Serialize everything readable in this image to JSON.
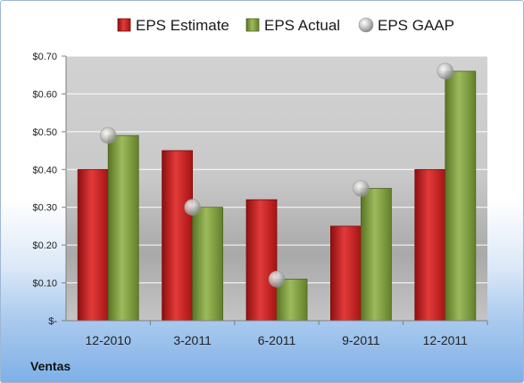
{
  "company": "Ventas",
  "chart_data": {
    "type": "bar",
    "categories": [
      "12-2010",
      "3-2011",
      "6-2011",
      "9-2011",
      "12-2011"
    ],
    "series": [
      {
        "name": "EPS Estimate",
        "kind": "bar",
        "color": "#c81d1d",
        "values": [
          0.4,
          0.45,
          0.32,
          0.25,
          0.4
        ]
      },
      {
        "name": "EPS Actual",
        "kind": "bar",
        "color": "#7a9a3a",
        "values": [
          0.49,
          0.3,
          0.11,
          0.35,
          0.66
        ]
      },
      {
        "name": "EPS GAAP",
        "kind": "marker",
        "color": "#b8b8b8",
        "values": [
          0.49,
          0.3,
          0.11,
          0.35,
          0.66
        ]
      }
    ],
    "y_ticks": [
      {
        "value": 0.7,
        "label": "$0.70"
      },
      {
        "value": 0.6,
        "label": "$0.60"
      },
      {
        "value": 0.5,
        "label": "$0.50"
      },
      {
        "value": 0.4,
        "label": "$0.40"
      },
      {
        "value": 0.3,
        "label": "$0.30"
      },
      {
        "value": 0.2,
        "label": "$0.20"
      },
      {
        "value": 0.1,
        "label": "$0.10"
      },
      {
        "value": 0.0,
        "label": "$-"
      }
    ],
    "ylim": [
      0,
      0.7
    ],
    "grid": true,
    "legend_position": "top"
  }
}
